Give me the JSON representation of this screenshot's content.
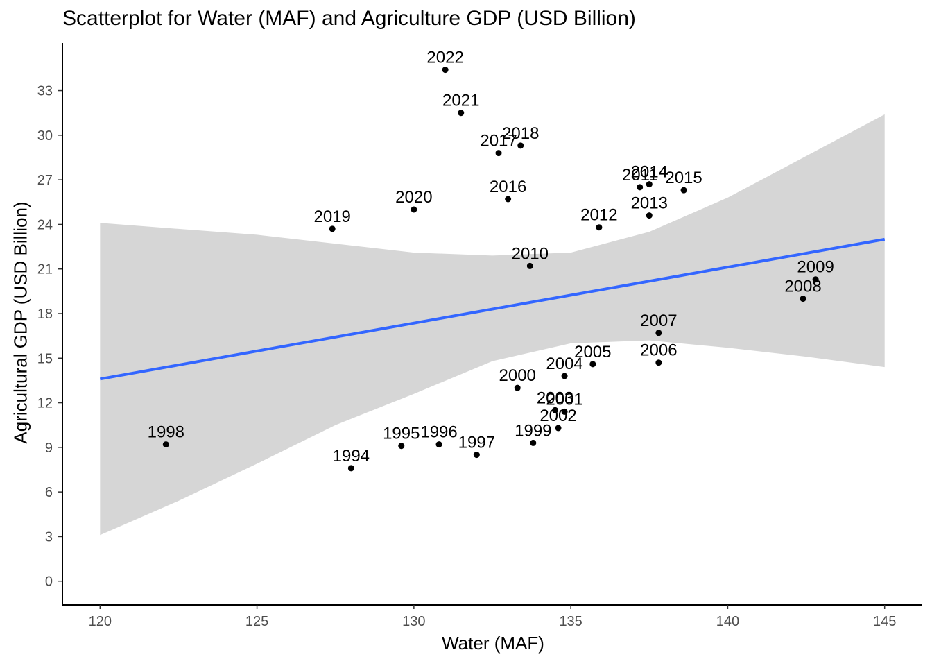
{
  "chart_data": {
    "type": "scatter",
    "title": "Scatterplot for Water (MAF) and Agriculture GDP (USD Billion)",
    "xlabel": "Water (MAF)",
    "ylabel": "Agricultural GDP (USD Billion)",
    "xlim": [
      118.8,
      146.2
    ],
    "ylim": [
      -1.6,
      36.2
    ],
    "x_ticks": [
      120,
      125,
      130,
      135,
      140,
      145
    ],
    "y_ticks": [
      0,
      3,
      6,
      9,
      12,
      15,
      18,
      21,
      24,
      27,
      30,
      33
    ],
    "grid": false,
    "points": [
      {
        "label": "1994",
        "x": 128.0,
        "y": 7.6
      },
      {
        "label": "1995",
        "x": 129.6,
        "y": 9.1
      },
      {
        "label": "1996",
        "x": 130.8,
        "y": 9.2
      },
      {
        "label": "1997",
        "x": 132.0,
        "y": 8.5
      },
      {
        "label": "1998",
        "x": 122.1,
        "y": 9.2
      },
      {
        "label": "1999",
        "x": 133.8,
        "y": 9.3
      },
      {
        "label": "2000",
        "x": 133.3,
        "y": 13.0
      },
      {
        "label": "2001",
        "x": 134.8,
        "y": 11.4
      },
      {
        "label": "2002",
        "x": 134.6,
        "y": 10.3
      },
      {
        "label": "2003",
        "x": 134.5,
        "y": 11.5
      },
      {
        "label": "2004",
        "x": 134.8,
        "y": 13.8
      },
      {
        "label": "2005",
        "x": 135.7,
        "y": 14.6
      },
      {
        "label": "2006",
        "x": 137.8,
        "y": 14.7
      },
      {
        "label": "2007",
        "x": 137.8,
        "y": 16.7
      },
      {
        "label": "2008",
        "x": 142.4,
        "y": 19.0
      },
      {
        "label": "2009",
        "x": 142.8,
        "y": 20.3
      },
      {
        "label": "2010",
        "x": 133.7,
        "y": 21.2
      },
      {
        "label": "2011",
        "x": 137.2,
        "y": 26.5
      },
      {
        "label": "2012",
        "x": 135.9,
        "y": 23.8
      },
      {
        "label": "2013",
        "x": 137.5,
        "y": 24.6
      },
      {
        "label": "2014",
        "x": 137.5,
        "y": 26.7
      },
      {
        "label": "2015",
        "x": 138.6,
        "y": 26.3
      },
      {
        "label": "2016",
        "x": 133.0,
        "y": 25.7
      },
      {
        "label": "2017",
        "x": 132.7,
        "y": 28.8
      },
      {
        "label": "2018",
        "x": 133.4,
        "y": 29.3
      },
      {
        "label": "2019",
        "x": 127.4,
        "y": 23.7
      },
      {
        "label": "2020",
        "x": 130.0,
        "y": 25.0
      },
      {
        "label": "2021",
        "x": 131.5,
        "y": 31.5
      },
      {
        "label": "2022",
        "x": 131.0,
        "y": 34.4
      }
    ],
    "trend_line": {
      "x": [
        120,
        145
      ],
      "y": [
        13.6,
        23.0
      ],
      "color": "#3366FF"
    },
    "confidence_band": {
      "color": "#d6d6d6",
      "x": [
        120,
        122.5,
        125,
        127.5,
        130,
        132.5,
        135,
        137.5,
        140,
        142.5,
        145
      ],
      "upper": [
        24.1,
        23.7,
        23.3,
        22.7,
        22.1,
        21.9,
        22.1,
        23.5,
        25.8,
        28.6,
        31.4
      ],
      "lower": [
        3.1,
        5.4,
        7.9,
        10.5,
        12.6,
        14.8,
        16.0,
        16.2,
        15.7,
        15.1,
        14.4
      ]
    }
  }
}
